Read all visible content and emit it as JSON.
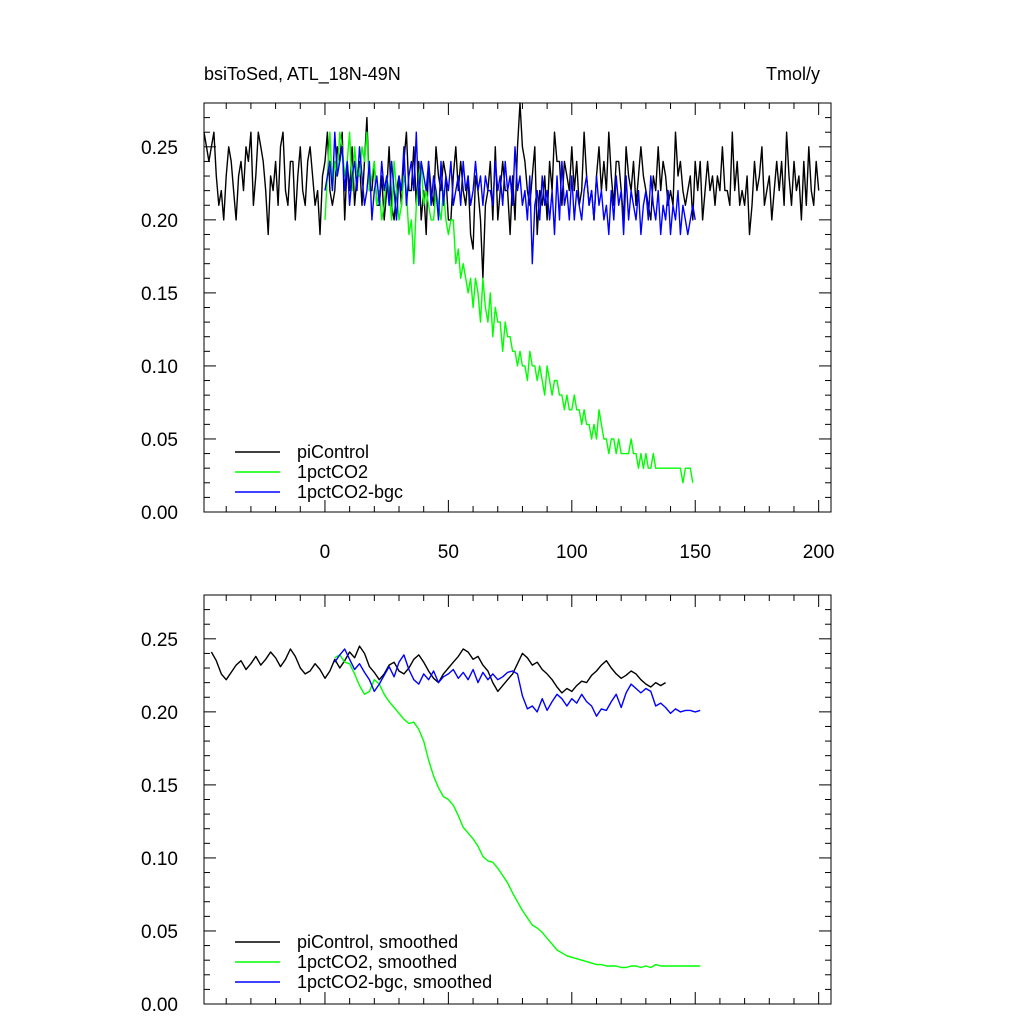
{
  "chart_data": [
    {
      "type": "line",
      "title_left": "bsiToSed, ATL_18N-49N",
      "title_right": "Tmol/y",
      "xlim": [
        -49,
        205
      ],
      "ylim": [
        0.0,
        0.28
      ],
      "xticks": [
        0,
        50,
        100,
        150,
        200
      ],
      "xtick_labels": [
        "0",
        "50",
        "100",
        "150",
        "200"
      ],
      "yticks": [
        0.0,
        0.05,
        0.1,
        0.15,
        0.2,
        0.25
      ],
      "ytick_labels": [
        "0.00",
        "0.05",
        "0.10",
        "0.15",
        "0.20",
        "0.25"
      ],
      "legend_position": "bottom-left",
      "series": [
        {
          "name": "piControl",
          "color": "#000000",
          "x_start": -49,
          "x_step": 1,
          "values": [
            0.26,
            0.25,
            0.24,
            0.25,
            0.26,
            0.23,
            0.21,
            0.22,
            0.2,
            0.23,
            0.25,
            0.24,
            0.22,
            0.2,
            0.23,
            0.24,
            0.22,
            0.25,
            0.24,
            0.26,
            0.21,
            0.23,
            0.26,
            0.25,
            0.24,
            0.22,
            0.19,
            0.23,
            0.22,
            0.24,
            0.21,
            0.25,
            0.26,
            0.22,
            0.21,
            0.24,
            0.24,
            0.2,
            0.23,
            0.25,
            0.22,
            0.21,
            0.24,
            0.25,
            0.23,
            0.21,
            0.22,
            0.19,
            0.23,
            0.24,
            0.26,
            0.22,
            0.21,
            0.22,
            0.25,
            0.24,
            0.26,
            0.2,
            0.24,
            0.22,
            0.25,
            0.21,
            0.23,
            0.24,
            0.21,
            0.24,
            0.27,
            0.22,
            0.22,
            0.24,
            0.21,
            0.21,
            0.23,
            0.2,
            0.22,
            0.25,
            0.21,
            0.2,
            0.22,
            0.23,
            0.21,
            0.24,
            0.26,
            0.22,
            0.22,
            0.25,
            0.21,
            0.24,
            0.2,
            0.22,
            0.19,
            0.24,
            0.22,
            0.21,
            0.25,
            0.23,
            0.22,
            0.24,
            0.23,
            0.2,
            0.2,
            0.23,
            0.25,
            0.22,
            0.24,
            0.22,
            0.21,
            0.23,
            0.19,
            0.18,
            0.23,
            0.22,
            0.2,
            0.16,
            0.21,
            0.22,
            0.24,
            0.2,
            0.25,
            0.2,
            0.22,
            0.24,
            0.22,
            0.22,
            0.19,
            0.23,
            0.2,
            0.25,
            0.28,
            0.25,
            0.24,
            0.22,
            0.21,
            0.23,
            0.25,
            0.19,
            0.22,
            0.21,
            0.23,
            0.2,
            0.24,
            0.22,
            0.26,
            0.24,
            0.24,
            0.21,
            0.24,
            0.23,
            0.22,
            0.25,
            0.22,
            0.24,
            0.21,
            0.22,
            0.26,
            0.23,
            0.21,
            0.22,
            0.2,
            0.23,
            0.25,
            0.22,
            0.24,
            0.22,
            0.26,
            0.23,
            0.21,
            0.24,
            0.24,
            0.22,
            0.2,
            0.25,
            0.23,
            0.22,
            0.24,
            0.21,
            0.23,
            0.25,
            0.23,
            0.22,
            0.21,
            0.2,
            0.23,
            0.22,
            0.25,
            0.22,
            0.24,
            0.23,
            0.21,
            0.22,
            0.21,
            0.26,
            0.23,
            0.24,
            0.22,
            0.21,
            0.22,
            0.23,
            0.2,
            0.24,
            0.22,
            0.24,
            0.2,
            0.22,
            0.24,
            0.22,
            0.23,
            0.21,
            0.23,
            0.22,
            0.25,
            0.22,
            0.22,
            0.21,
            0.26,
            0.22,
            0.24,
            0.21,
            0.22,
            0.21,
            0.23,
            0.19,
            0.21,
            0.24,
            0.22,
            0.23,
            0.25,
            0.21,
            0.22,
            0.23,
            0.2,
            0.22,
            0.24,
            0.22,
            0.24,
            0.21,
            0.26,
            0.23,
            0.21,
            0.24,
            0.22,
            0.23,
            0.2,
            0.24,
            0.21,
            0.25,
            0.22,
            0.21,
            0.24,
            0.22
          ]
        },
        {
          "name": "1pctCO2",
          "color": "#00ff00",
          "x_start": 0,
          "x_step": 1,
          "values": [
            0.2,
            0.23,
            0.26,
            0.22,
            0.24,
            0.23,
            0.26,
            0.25,
            0.23,
            0.24,
            0.26,
            0.22,
            0.25,
            0.23,
            0.23,
            0.25,
            0.24,
            0.26,
            0.22,
            0.23,
            0.24,
            0.21,
            0.22,
            0.2,
            0.21,
            0.23,
            0.22,
            0.2,
            0.24,
            0.22,
            0.2,
            0.21,
            0.23,
            0.22,
            0.19,
            0.2,
            0.17,
            0.21,
            0.23,
            0.24,
            0.21,
            0.22,
            0.21,
            0.2,
            0.2,
            0.22,
            0.21,
            0.2,
            0.22,
            0.2,
            0.19,
            0.2,
            0.2,
            0.17,
            0.18,
            0.16,
            0.17,
            0.16,
            0.15,
            0.16,
            0.14,
            0.16,
            0.15,
            0.13,
            0.16,
            0.14,
            0.13,
            0.15,
            0.12,
            0.14,
            0.13,
            0.13,
            0.11,
            0.13,
            0.12,
            0.12,
            0.11,
            0.11,
            0.1,
            0.11,
            0.1,
            0.1,
            0.09,
            0.11,
            0.1,
            0.1,
            0.09,
            0.1,
            0.09,
            0.08,
            0.1,
            0.09,
            0.08,
            0.09,
            0.09,
            0.08,
            0.08,
            0.07,
            0.08,
            0.07,
            0.07,
            0.08,
            0.07,
            0.07,
            0.06,
            0.07,
            0.06,
            0.06,
            0.05,
            0.06,
            0.05,
            0.07,
            0.06,
            0.05,
            0.05,
            0.04,
            0.05,
            0.05,
            0.04,
            0.05,
            0.04,
            0.04,
            0.04,
            0.04,
            0.05,
            0.04,
            0.04,
            0.03,
            0.04,
            0.03,
            0.04,
            0.03,
            0.03,
            0.04,
            0.03,
            0.03,
            0.03,
            0.03,
            0.03,
            0.03,
            0.03,
            0.03,
            0.03,
            0.03,
            0.03,
            0.02,
            0.03,
            0.03,
            0.03,
            0.02
          ]
        },
        {
          "name": "1pctCO2-bgc",
          "color": "#0000ff",
          "x_start": 0,
          "x_step": 1,
          "values": [
            0.22,
            0.23,
            0.24,
            0.22,
            0.26,
            0.23,
            0.24,
            0.25,
            0.22,
            0.24,
            0.21,
            0.23,
            0.24,
            0.22,
            0.25,
            0.23,
            0.21,
            0.22,
            0.24,
            0.2,
            0.22,
            0.23,
            0.21,
            0.24,
            0.22,
            0.23,
            0.21,
            0.24,
            0.22,
            0.2,
            0.23,
            0.22,
            0.25,
            0.21,
            0.23,
            0.24,
            0.22,
            0.26,
            0.21,
            0.24,
            0.23,
            0.22,
            0.24,
            0.21,
            0.23,
            0.22,
            0.2,
            0.24,
            0.21,
            0.23,
            0.22,
            0.24,
            0.21,
            0.22,
            0.23,
            0.21,
            0.24,
            0.22,
            0.23,
            0.21,
            0.22,
            0.24,
            0.22,
            0.23,
            0.21,
            0.23,
            0.22,
            0.22,
            0.21,
            0.24,
            0.22,
            0.23,
            0.21,
            0.24,
            0.22,
            0.23,
            0.21,
            0.25,
            0.22,
            0.23,
            0.21,
            0.22,
            0.2,
            0.23,
            0.17,
            0.21,
            0.22,
            0.2,
            0.23,
            0.21,
            0.22,
            0.2,
            0.22,
            0.19,
            0.23,
            0.2,
            0.24,
            0.21,
            0.22,
            0.2,
            0.23,
            0.2,
            0.22,
            0.21,
            0.2,
            0.22,
            0.23,
            0.21,
            0.22,
            0.2,
            0.23,
            0.21,
            0.22,
            0.2,
            0.21,
            0.19,
            0.22,
            0.2,
            0.23,
            0.21,
            0.22,
            0.19,
            0.23,
            0.2,
            0.22,
            0.21,
            0.2,
            0.22,
            0.19,
            0.21,
            0.22,
            0.2,
            0.23,
            0.21,
            0.2,
            0.22,
            0.19,
            0.21,
            0.2,
            0.22,
            0.19,
            0.21,
            0.2,
            0.22,
            0.19,
            0.21,
            0.2,
            0.19,
            0.2,
            0.21,
            0.2
          ]
        }
      ],
      "legend": [
        "piControl",
        "1pctCO2",
        "1pctCO2-bgc"
      ]
    },
    {
      "type": "line",
      "xlim": [
        -49,
        205
      ],
      "ylim": [
        0.0,
        0.28
      ],
      "yticks": [
        0.0,
        0.05,
        0.1,
        0.15,
        0.2,
        0.25
      ],
      "ytick_labels": [
        "0.00",
        "0.05",
        "0.10",
        "0.15",
        "0.20",
        "0.25"
      ],
      "legend_position": "bottom-left",
      "series": [
        {
          "name": "piControl, smoothed",
          "color": "#000000",
          "x_start": -46,
          "x_step": 2,
          "values": [
            0.241,
            0.235,
            0.226,
            0.222,
            0.227,
            0.232,
            0.235,
            0.229,
            0.233,
            0.238,
            0.232,
            0.236,
            0.241,
            0.237,
            0.231,
            0.236,
            0.243,
            0.238,
            0.23,
            0.226,
            0.228,
            0.233,
            0.229,
            0.223,
            0.228,
            0.236,
            0.23,
            0.235,
            0.241,
            0.237,
            0.245,
            0.24,
            0.231,
            0.227,
            0.222,
            0.226,
            0.232,
            0.234,
            0.228,
            0.226,
            0.23,
            0.236,
            0.239,
            0.234,
            0.228,
            0.223,
            0.22,
            0.226,
            0.23,
            0.234,
            0.238,
            0.243,
            0.241,
            0.236,
            0.238,
            0.232,
            0.228,
            0.22,
            0.214,
            0.218,
            0.222,
            0.226,
            0.233,
            0.24,
            0.237,
            0.232,
            0.234,
            0.229,
            0.226,
            0.222,
            0.217,
            0.213,
            0.216,
            0.214,
            0.218,
            0.221,
            0.22,
            0.225,
            0.228,
            0.232,
            0.235,
            0.23,
            0.226,
            0.223,
            0.225,
            0.228,
            0.226,
            0.222,
            0.219,
            0.217,
            0.22,
            0.218,
            0.22
          ]
        },
        {
          "name": "1pctCO2, smoothed",
          "color": "#00ff00",
          "x_start": 4,
          "x_step": 2,
          "values": [
            0.237,
            0.239,
            0.234,
            0.233,
            0.226,
            0.218,
            0.212,
            0.214,
            0.222,
            0.219,
            0.212,
            0.207,
            0.203,
            0.199,
            0.195,
            0.192,
            0.193,
            0.188,
            0.18,
            0.167,
            0.156,
            0.148,
            0.142,
            0.14,
            0.136,
            0.129,
            0.121,
            0.117,
            0.113,
            0.108,
            0.101,
            0.098,
            0.097,
            0.093,
            0.088,
            0.083,
            0.076,
            0.07,
            0.064,
            0.059,
            0.054,
            0.052,
            0.049,
            0.045,
            0.041,
            0.037,
            0.035,
            0.033,
            0.032,
            0.031,
            0.03,
            0.029,
            0.028,
            0.027,
            0.027,
            0.026,
            0.026,
            0.026,
            0.025,
            0.025,
            0.026,
            0.026,
            0.025,
            0.026,
            0.025,
            0.027,
            0.026,
            0.026,
            0.026,
            0.026,
            0.026,
            0.026,
            0.026,
            0.026,
            0.026
          ]
        },
        {
          "name": "1pctCO2-bgc, smoothed",
          "color": "#0000ff",
          "x_start": 4,
          "x_step": 2,
          "values": [
            0.234,
            0.239,
            0.243,
            0.236,
            0.229,
            0.233,
            0.227,
            0.222,
            0.214,
            0.219,
            0.225,
            0.231,
            0.224,
            0.234,
            0.239,
            0.229,
            0.222,
            0.219,
            0.226,
            0.222,
            0.228,
            0.22,
            0.224,
            0.226,
            0.229,
            0.223,
            0.227,
            0.222,
            0.229,
            0.22,
            0.227,
            0.222,
            0.226,
            0.222,
            0.224,
            0.227,
            0.228,
            0.226,
            0.211,
            0.202,
            0.204,
            0.2,
            0.209,
            0.201,
            0.207,
            0.212,
            0.209,
            0.204,
            0.209,
            0.206,
            0.212,
            0.207,
            0.204,
            0.197,
            0.202,
            0.201,
            0.207,
            0.212,
            0.203,
            0.213,
            0.219,
            0.216,
            0.213,
            0.216,
            0.214,
            0.204,
            0.206,
            0.203,
            0.199,
            0.202,
            0.2,
            0.201,
            0.201,
            0.2,
            0.201
          ]
        }
      ],
      "legend": [
        "piControl, smoothed",
        "1pctCO2, smoothed",
        "1pctCO2-bgc, smoothed"
      ]
    }
  ]
}
